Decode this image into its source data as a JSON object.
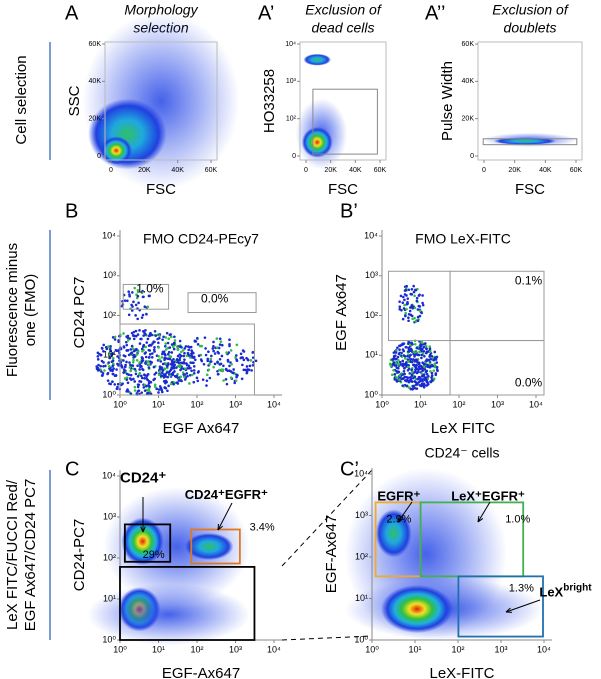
{
  "row_labels": [
    [
      "Cell selection"
    ],
    [
      "Fluorescence minus",
      "one (FMO)"
    ],
    [
      "LeX FITC/FUCCI Red/",
      "EGF Ax647/CD24 PC7"
    ]
  ],
  "panels": [
    {
      "letter": "A",
      "title": [
        "Morphology",
        "selection"
      ],
      "ylabel": "SSC",
      "xlabel": "FSC",
      "yticks": [
        "0",
        "20K",
        "40K",
        "60K"
      ],
      "xticks": [
        "0",
        "20K",
        "40K",
        "60K"
      ]
    },
    {
      "letter": "A’",
      "title": [
        "Exclusion of",
        "dead cells"
      ],
      "ylabel": "HO33258",
      "xlabel": "FSC",
      "yticks": [
        "0",
        "10²",
        "10³",
        "10⁴"
      ],
      "xticks": [
        "0",
        "20K",
        "40K",
        "60K"
      ]
    },
    {
      "letter": "A’’",
      "title": [
        "Exclusion of",
        "doublets"
      ],
      "ylabel": "Pulse Width",
      "xlabel": "FSC",
      "yticks": [
        "0",
        "20K",
        "40K",
        "60K"
      ],
      "xticks": [
        "0",
        "20K",
        "40K",
        "60K"
      ]
    },
    {
      "letter": "B",
      "title": [
        "FMO CD24-PEcy7"
      ],
      "ylabel": "CD24 PC7",
      "xlabel": "EGF Ax647",
      "yticks": [
        "10⁰",
        "10¹",
        "10²",
        "10³",
        "10⁴"
      ],
      "xticks": [
        "10⁰",
        "10¹",
        "10²",
        "10³",
        "10⁴"
      ],
      "gates": [
        "1.0%",
        "0.0%"
      ]
    },
    {
      "letter": "B’",
      "title": [
        "FMO LeX-FITC"
      ],
      "ylabel": "EGF Ax647",
      "xlabel": "LeX FITC",
      "yticks": [
        "10⁰",
        "10¹",
        "10²",
        "10³",
        "10⁴"
      ],
      "xticks": [
        "10⁰",
        "10¹",
        "10²",
        "10³",
        "10⁴"
      ],
      "gates": [
        "0.1%",
        "0.0%"
      ]
    },
    {
      "letter": "C",
      "ylabel": "CD24-PC7",
      "xlabel": "EGF-Ax647",
      "yticks": [
        "10⁰",
        "10¹",
        "10²",
        "10³",
        "10⁴"
      ],
      "xticks": [
        "10⁰",
        "10¹",
        "10²",
        "10³",
        "10⁴"
      ],
      "gates": [
        "29%",
        "3.4%"
      ],
      "populations": [
        "CD24⁺",
        "CD24⁺EGFR⁺"
      ]
    },
    {
      "letter": "C’",
      "title": [
        "CD24⁻ cells"
      ],
      "ylabel": "EGF-Ax647",
      "xlabel": "LeX-FITC",
      "yticks": [
        "10⁰",
        "10¹",
        "10²",
        "10³",
        "10⁴"
      ],
      "xticks": [
        "10⁰",
        "10¹",
        "10²",
        "10³",
        "10⁴"
      ],
      "gates": [
        "2.9%",
        "1.0%",
        "1.3%"
      ],
      "populations": [
        "EGFR⁺",
        "LeX⁺EGFR⁺"
      ],
      "bright": {
        "base": "LeX",
        "sup": "bright"
      }
    }
  ]
}
